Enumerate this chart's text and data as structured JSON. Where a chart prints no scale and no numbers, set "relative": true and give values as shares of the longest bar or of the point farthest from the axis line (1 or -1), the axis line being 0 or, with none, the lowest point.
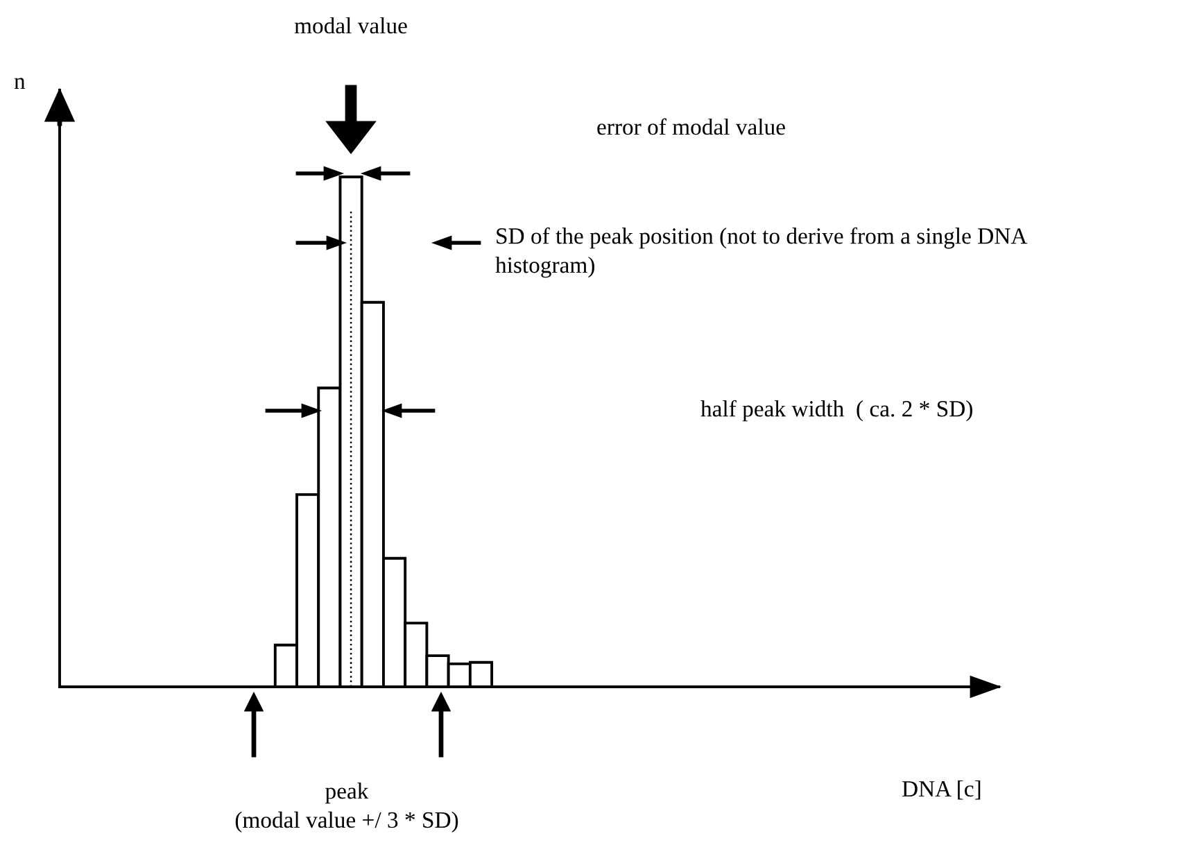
{
  "chart_data": {
    "type": "bar",
    "relative": true,
    "categories": [
      null,
      null,
      null,
      null,
      null,
      null,
      null,
      null,
      null,
      null
    ],
    "values": [
      0.082,
      0.377,
      0.586,
      1,
      0.754,
      0.252,
      0.125,
      0.061,
      0.045,
      0.048
    ],
    "color": "#ffffff",
    "annotations": [
      "modal value",
      "error of modal value",
      "SD of the peak position (not to derive from a single DNA\nhistogram)",
      "half peak width  ( ca. 2 * SD)",
      "peak\n(modal value +/ 3 * SD)",
      "n",
      "DNA [c]"
    ]
  }
}
